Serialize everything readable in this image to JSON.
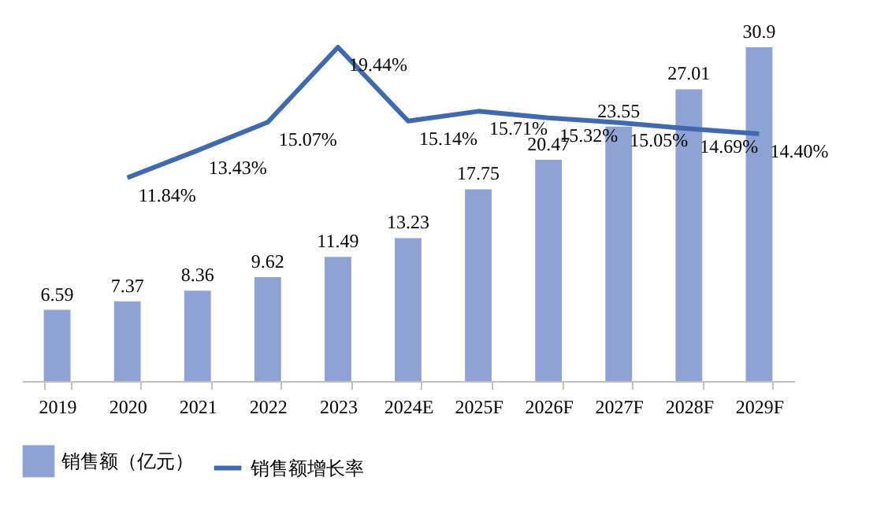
{
  "chart_data": {
    "type": "bar",
    "categories": [
      "2019",
      "2020",
      "2021",
      "2022",
      "2023",
      "2024E",
      "2025F",
      "2026F",
      "2027F",
      "2028F",
      "2029F"
    ],
    "series": [
      {
        "name": "销售额（亿元）",
        "color": "#8fa2d4",
        "values": [
          6.59,
          7.37,
          8.36,
          9.62,
          11.49,
          13.23,
          17.75,
          20.47,
          23.55,
          27.01,
          30.9
        ],
        "value_labels": [
          "6.59",
          "7.37",
          "8.36",
          "9.62",
          "11.49",
          "13.23",
          "17.75",
          "20.47",
          "23.55",
          "27.01",
          "30.9"
        ]
      },
      {
        "name": "销售额增长率",
        "type": "line",
        "axis": "y2",
        "color": "#4169b0",
        "values": [
          null,
          11.84,
          13.43,
          15.07,
          19.44,
          15.14,
          15.71,
          15.32,
          15.05,
          14.69,
          14.4
        ],
        "value_labels": [
          null,
          "11.84%",
          "13.43%",
          "15.07%",
          "19.44%",
          "15.14%",
          "15.71%",
          "15.32%",
          "15.05%",
          "14.69%",
          "14.40%"
        ]
      }
    ],
    "legend": "bottom",
    "grid": false
  }
}
